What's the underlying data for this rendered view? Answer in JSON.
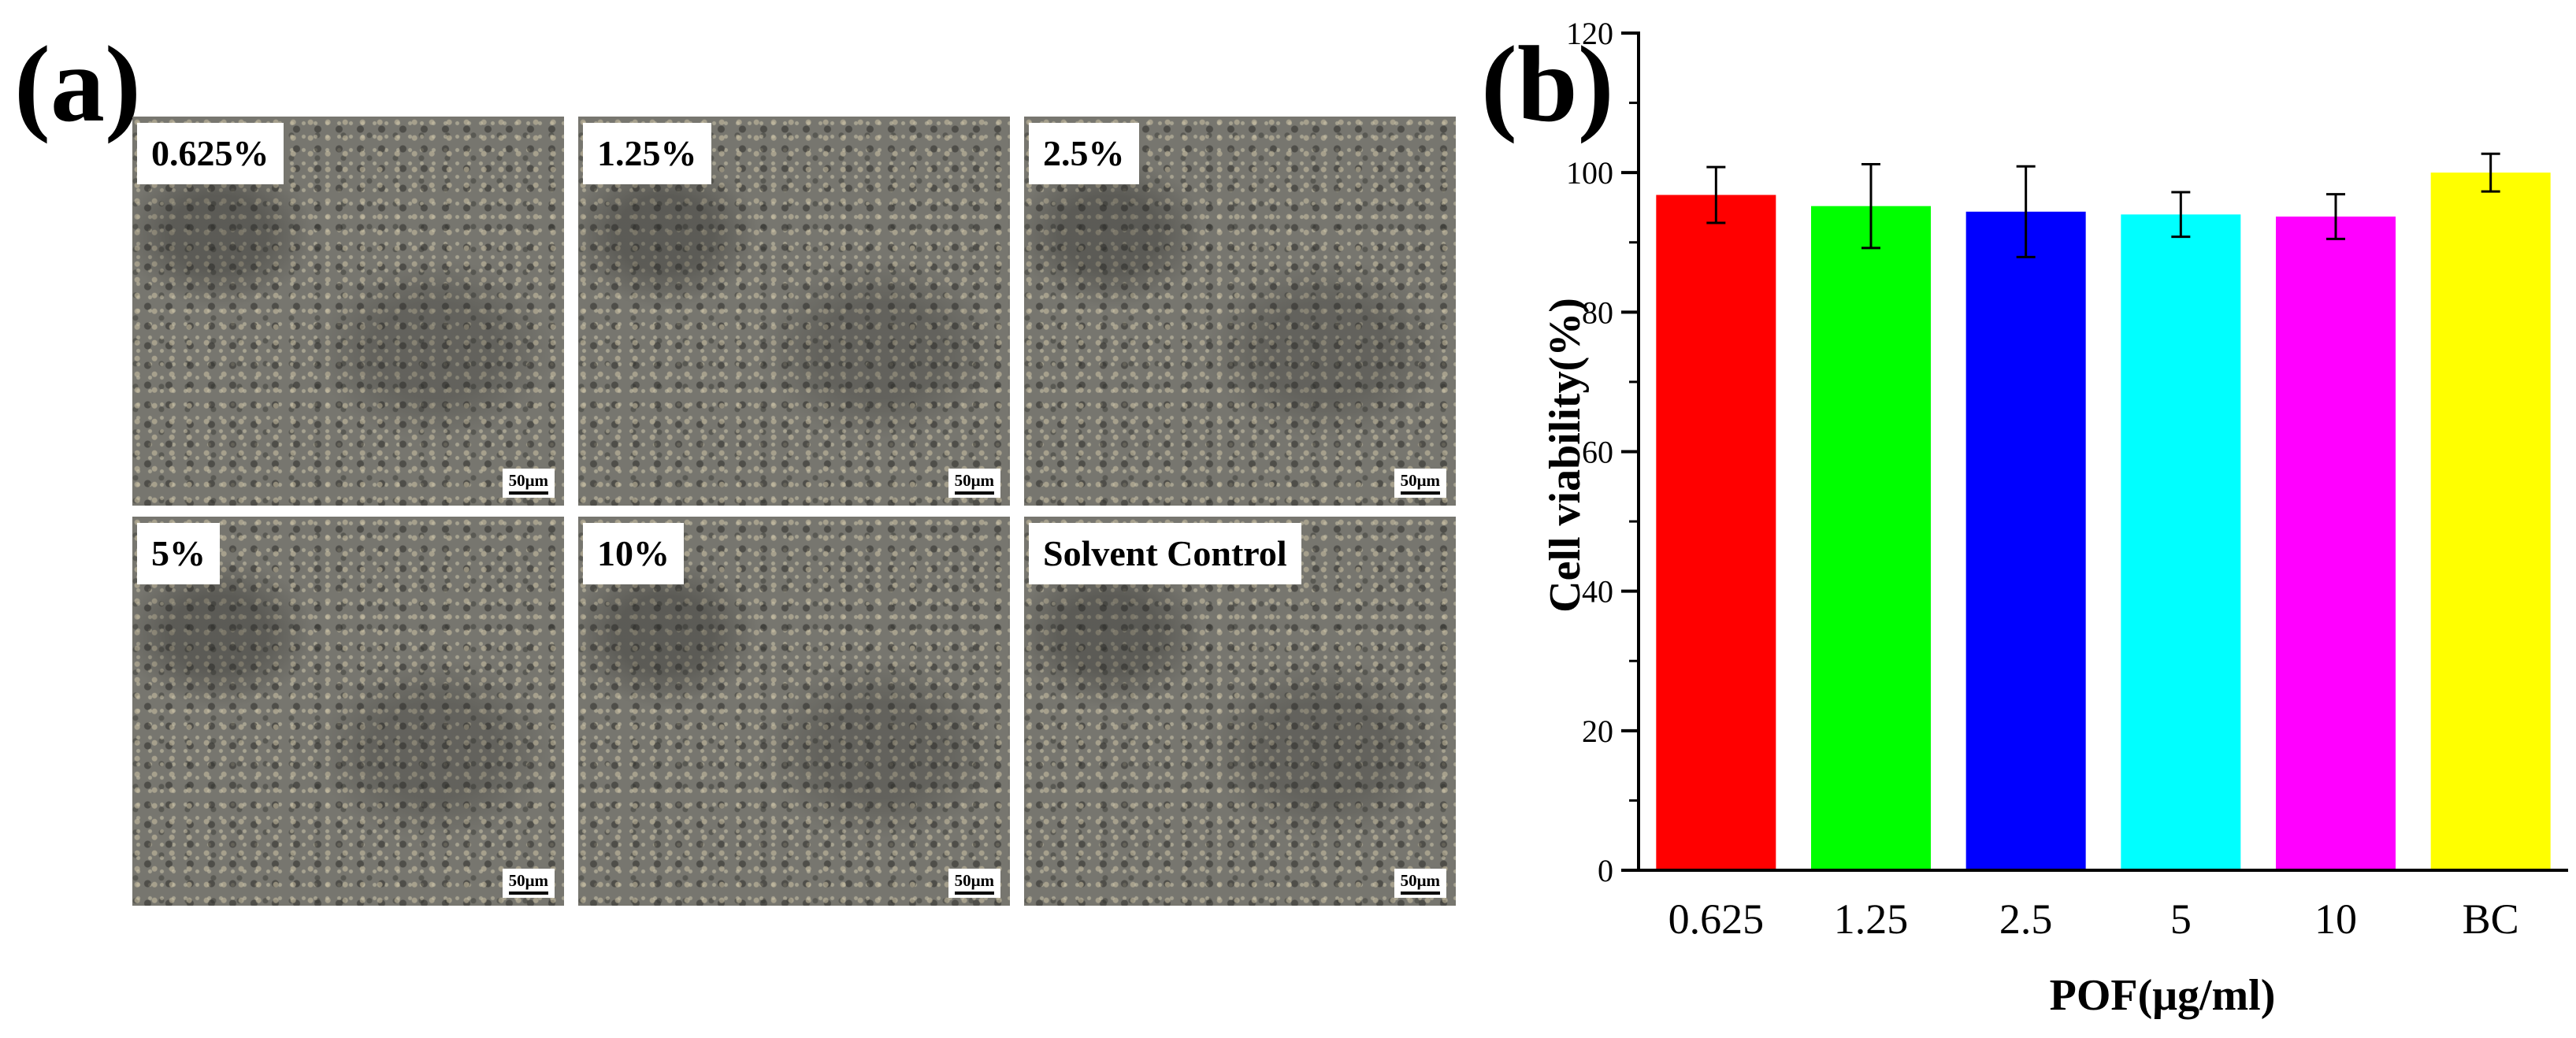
{
  "panel_a": {
    "label": "(a)",
    "tiles": [
      {
        "label": "0.625%",
        "scale": "50μm"
      },
      {
        "label": "1.25%",
        "scale": "50μm"
      },
      {
        "label": "2.5%",
        "scale": "50μm"
      },
      {
        "label": "5%",
        "scale": "50μm"
      },
      {
        "label": "10%",
        "scale": "50μm"
      },
      {
        "label": "Solvent Control",
        "scale": "50μm"
      }
    ]
  },
  "panel_b": {
    "label": "(b)"
  },
  "chart_data": {
    "type": "bar",
    "title": "",
    "xlabel": "POF(μg/ml)",
    "ylabel": "Cell viability(%)",
    "ylim": [
      0,
      120
    ],
    "yticks": [
      0,
      20,
      40,
      60,
      80,
      100,
      120
    ],
    "categories": [
      "0.625",
      "1.25",
      "2.5",
      "5",
      "10",
      "BC"
    ],
    "values": [
      96.8,
      95.2,
      94.4,
      94.0,
      93.7,
      100.0
    ],
    "errors": [
      4.0,
      6.0,
      6.5,
      3.2,
      3.2,
      2.7
    ],
    "colors": [
      "#ff0000",
      "#00ff00",
      "#0000ff",
      "#00ffff",
      "#ff00ff",
      "#ffff00"
    ]
  }
}
